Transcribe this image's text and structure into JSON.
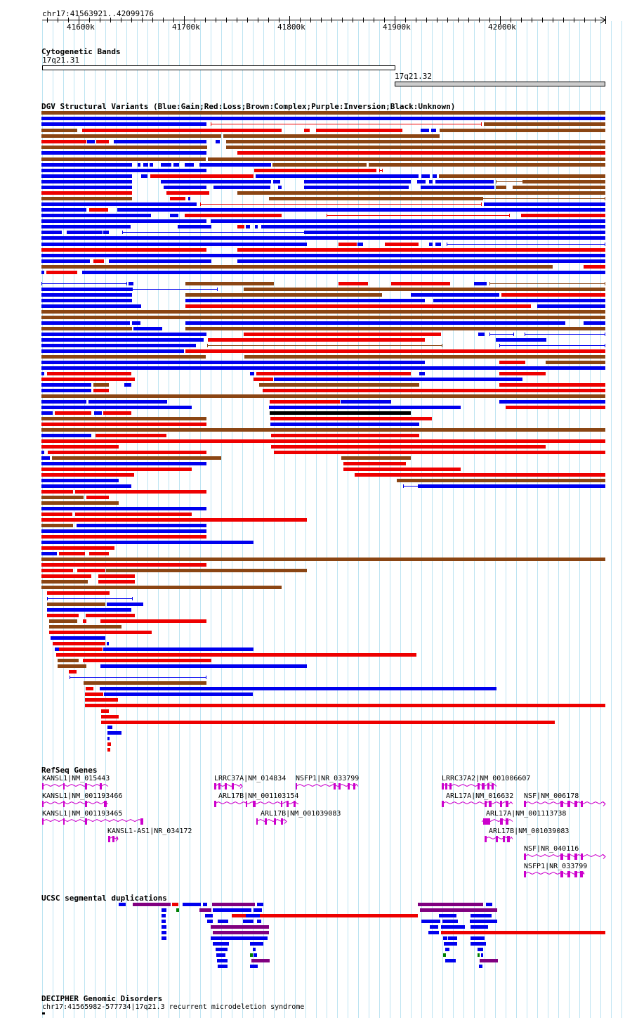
{
  "coordinates": "chr17:41563921..42099176",
  "ruler": {
    "ticks": [
      "41600k",
      "41700k",
      "41800k",
      "41900k",
      "42000k"
    ]
  },
  "tracks": {
    "cytobands": {
      "title": "Cytogenetic Bands",
      "bands": [
        "17q21.31",
        "17q21.32"
      ]
    },
    "dgv": {
      "title": "DGV Structural Variants (Blue:Gain;Red:Loss;Brown:Complex;Purple:Inversion;Black:Unknown)",
      "colors": {
        "gain": "#0000ee",
        "loss": "#ee0000",
        "complex": "#8b4513",
        "inversion": "#800080",
        "unknown": "#000000"
      }
    },
    "refseq": {
      "title": "RefSeq Genes",
      "color": "#cc00cc",
      "genes": [
        "KANSL1|NM_015443",
        "KANSL1|NM_001193466",
        "KANSL1|NM_001193465",
        "KANSL1-AS1|NR_034172",
        "LRRC37A|NM_014834",
        "ARL17B|NM_001103154",
        "ARL17B|NM_001039083",
        "NSFP1|NR_033799",
        "LRRC37A2|NM_001006607",
        "ARL17A|NM_016632",
        "ARL17A|NM_001113738",
        "ARL17B|NM_001039083",
        "NSF|NM_006178",
        "NSF|NR_040116",
        "NSFP1|NR_033799"
      ]
    },
    "segdups": {
      "title": "UCSC segmental duplications"
    },
    "decipher": {
      "title": "DECIPHER Genomic Disorders",
      "feature": "chr17:41565982-577734|17q21.3 recurrent microdeletion syndrome"
    }
  }
}
